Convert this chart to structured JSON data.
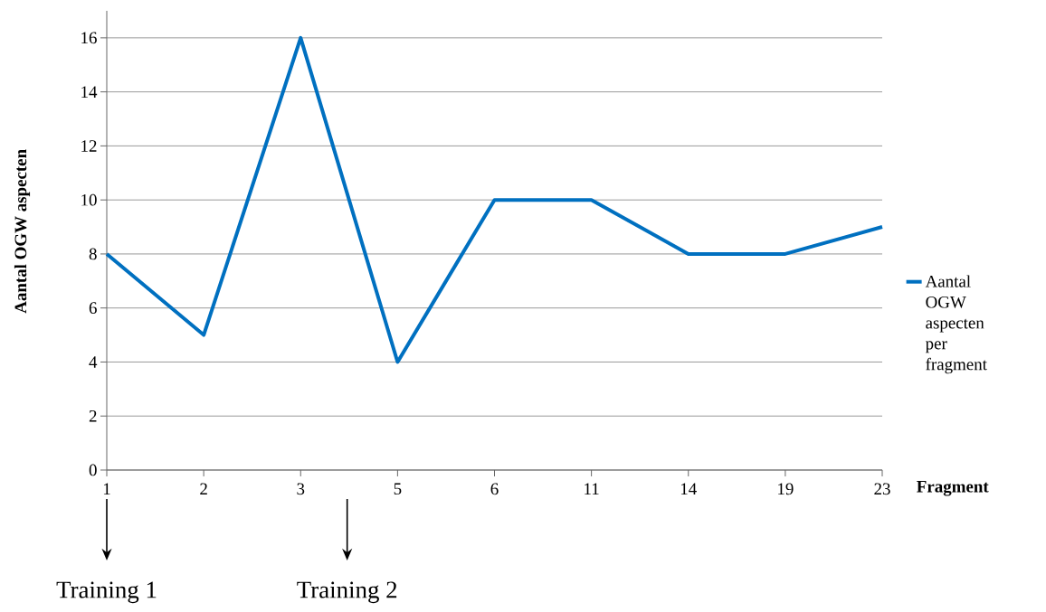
{
  "chart_data": {
    "type": "line",
    "ylabel": "Aantal OGW aspecten",
    "xlabel": "Fragment",
    "categories": [
      "1",
      "2",
      "3",
      "5",
      "6",
      "11",
      "14",
      "19",
      "23"
    ],
    "series": [
      {
        "name": "Aantal OGW aspecten per fragment",
        "color": "#0070c0",
        "values": [
          8,
          5,
          16,
          4,
          10,
          10,
          8,
          8,
          9
        ]
      }
    ],
    "ylim": [
      0,
      17
    ],
    "yticks": [
      0,
      2,
      4,
      6,
      8,
      10,
      12,
      14,
      16
    ],
    "grid": "y",
    "legend": "right",
    "marker": "none",
    "line_style": "solid",
    "annotations": [
      "Training 1",
      "Training 2"
    ]
  }
}
